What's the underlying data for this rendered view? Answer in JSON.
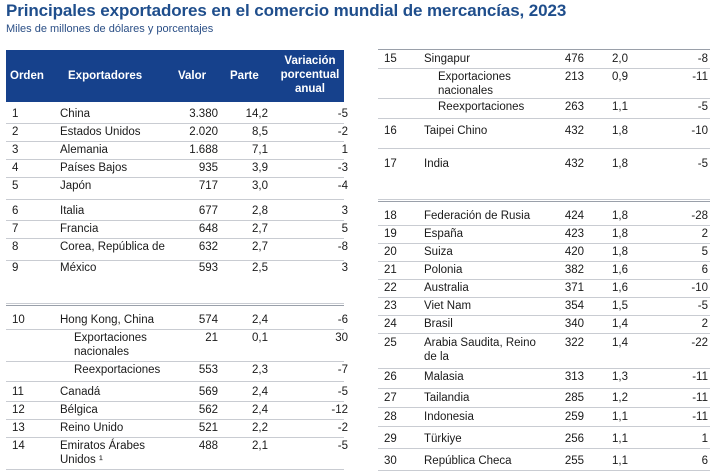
{
  "title": "Principales exportadores en el comercio mundial de mercancías, 2023",
  "subtitle": "Miles de millones de dólares y porcentajes",
  "headers": {
    "orden": "Orden",
    "exportadores": "Exportadores",
    "valor": "Valor",
    "parte": "Parte",
    "variacion": "Variación porcentual anual"
  },
  "left_rows": [
    {
      "rank": "1",
      "name": "China",
      "valor": "3.380",
      "parte": "14,2",
      "var": "-5"
    },
    {
      "rank": "2",
      "name": "Estados Unidos",
      "valor": "2.020",
      "parte": "8,5",
      "var": "-2"
    },
    {
      "rank": "3",
      "name": "Alemania",
      "valor": "1.688",
      "parte": "7,1",
      "var": "1"
    },
    {
      "rank": "4",
      "name": "Países Bajos",
      "valor": "935",
      "parte": "3,9",
      "var": "-3"
    },
    {
      "rank": "5",
      "name": "Japón",
      "valor": "717",
      "parte": "3,0",
      "var": "-4"
    },
    {
      "rank": "6",
      "name": "Italia",
      "valor": "677",
      "parte": "2,8",
      "var": "3"
    },
    {
      "rank": "7",
      "name": "Francia",
      "valor": "648",
      "parte": "2,7",
      "var": "5"
    },
    {
      "rank": "8",
      "name": "Corea, República de",
      "valor": "632",
      "parte": "2,7",
      "var": "-8"
    },
    {
      "rank": "9",
      "name": "México",
      "valor": "593",
      "parte": "2,5",
      "var": "3"
    },
    {
      "rank": "10",
      "name": "Hong Kong, China",
      "valor": "574",
      "parte": "2,4",
      "var": "-6"
    },
    {
      "rank": "",
      "name": "Exportaciones nacionales",
      "valor": "21",
      "parte": "0,1",
      "var": "30",
      "sub": true
    },
    {
      "rank": "",
      "name": "Reexportaciones",
      "valor": "553",
      "parte": "2,3",
      "var": "-7",
      "sub": true
    },
    {
      "rank": "11",
      "name": "Canadá",
      "valor": "569",
      "parte": "2,4",
      "var": "-5"
    },
    {
      "rank": "12",
      "name": "Bélgica",
      "valor": "562",
      "parte": "2,4",
      "var": "-12"
    },
    {
      "rank": "13",
      "name": "Reino Unido",
      "valor": "521",
      "parte": "2,2",
      "var": "-2"
    },
    {
      "rank": "14",
      "name": "Emiratos Árabes Unidos ¹",
      "valor": "488",
      "parte": "2,1",
      "var": "-5"
    }
  ],
  "right_rows": [
    {
      "rank": "15",
      "name": "Singapur",
      "valor": "476",
      "parte": "2,0",
      "var": "-8"
    },
    {
      "rank": "",
      "name": "Exportaciones nacionales",
      "valor": "213",
      "parte": "0,9",
      "var": "-11",
      "sub": true
    },
    {
      "rank": "",
      "name": "Reexportaciones",
      "valor": "263",
      "parte": "1,1",
      "var": "-5",
      "sub": true
    },
    {
      "rank": "16",
      "name": "Taipei Chino",
      "valor": "432",
      "parte": "1,8",
      "var": "-10"
    },
    {
      "rank": "17",
      "name": "India",
      "valor": "432",
      "parte": "1,8",
      "var": "-5"
    },
    {
      "rank": "18",
      "name": "Federación de Rusia",
      "valor": "424",
      "parte": "1,8",
      "var": "-28"
    },
    {
      "rank": "19",
      "name": "España",
      "valor": "423",
      "parte": "1,8",
      "var": "2"
    },
    {
      "rank": "20",
      "name": "Suiza",
      "valor": "420",
      "parte": "1,8",
      "var": "5"
    },
    {
      "rank": "21",
      "name": "Polonia",
      "valor": "382",
      "parte": "1,6",
      "var": "6"
    },
    {
      "rank": "22",
      "name": "Australia",
      "valor": "371",
      "parte": "1,6",
      "var": "-10"
    },
    {
      "rank": "23",
      "name": "Viet Nam",
      "valor": "354",
      "parte": "1,5",
      "var": "-5"
    },
    {
      "rank": "24",
      "name": "Brasil",
      "valor": "340",
      "parte": "1,4",
      "var": "2"
    },
    {
      "rank": "25",
      "name": "Arabia Saudita, Reino de la",
      "valor": "322",
      "parte": "1,4",
      "var": "-22"
    },
    {
      "rank": "26",
      "name": "Malasia",
      "valor": "313",
      "parte": "1,3",
      "var": "-11"
    },
    {
      "rank": "27",
      "name": "Tailandia",
      "valor": "285",
      "parte": "1,2",
      "var": "-11"
    },
    {
      "rank": "28",
      "name": "Indonesia",
      "valor": "259",
      "parte": "1,1",
      "var": "-11"
    },
    {
      "rank": "29",
      "name": "Türkiye",
      "valor": "256",
      "parte": "1,1",
      "var": "1"
    },
    {
      "rank": "30",
      "name": "República Checa",
      "valor": "255",
      "parte": "1,1",
      "var": "6"
    }
  ]
}
